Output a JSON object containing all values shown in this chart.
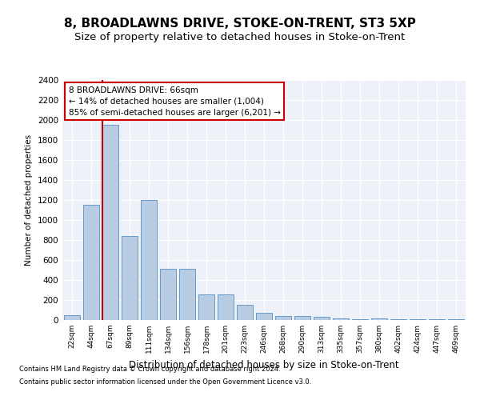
{
  "title": "8, BROADLAWNS DRIVE, STOKE-ON-TRENT, ST3 5XP",
  "subtitle": "Size of property relative to detached houses in Stoke-on-Trent",
  "xlabel": "Distribution of detached houses by size in Stoke-on-Trent",
  "ylabel": "Number of detached properties",
  "categories": [
    "22sqm",
    "44sqm",
    "67sqm",
    "89sqm",
    "111sqm",
    "134sqm",
    "156sqm",
    "178sqm",
    "201sqm",
    "223sqm",
    "246sqm",
    "268sqm",
    "290sqm",
    "313sqm",
    "335sqm",
    "357sqm",
    "380sqm",
    "402sqm",
    "424sqm",
    "447sqm",
    "469sqm"
  ],
  "values": [
    50,
    1150,
    1950,
    840,
    1200,
    510,
    510,
    260,
    260,
    150,
    70,
    40,
    40,
    30,
    15,
    10,
    15,
    5,
    5,
    5,
    5
  ],
  "bar_color": "#b8cce4",
  "bar_edge_color": "#6699cc",
  "red_line_index": 2,
  "ylim": [
    0,
    2400
  ],
  "yticks": [
    0,
    200,
    400,
    600,
    800,
    1000,
    1200,
    1400,
    1600,
    1800,
    2000,
    2200,
    2400
  ],
  "annotation_title": "8 BROADLAWNS DRIVE: 66sqm",
  "annotation_line1": "← 14% of detached houses are smaller (1,004)",
  "annotation_line2": "85% of semi-detached houses are larger (6,201) →",
  "annotation_box_edge": "#cc0000",
  "footer_line1": "Contains HM Land Registry data © Crown copyright and database right 2024.",
  "footer_line2": "Contains public sector information licensed under the Open Government Licence v3.0.",
  "background_color": "#eef2f8",
  "grid_color": "#ffffff",
  "title_fontsize": 11,
  "subtitle_fontsize": 9.5
}
